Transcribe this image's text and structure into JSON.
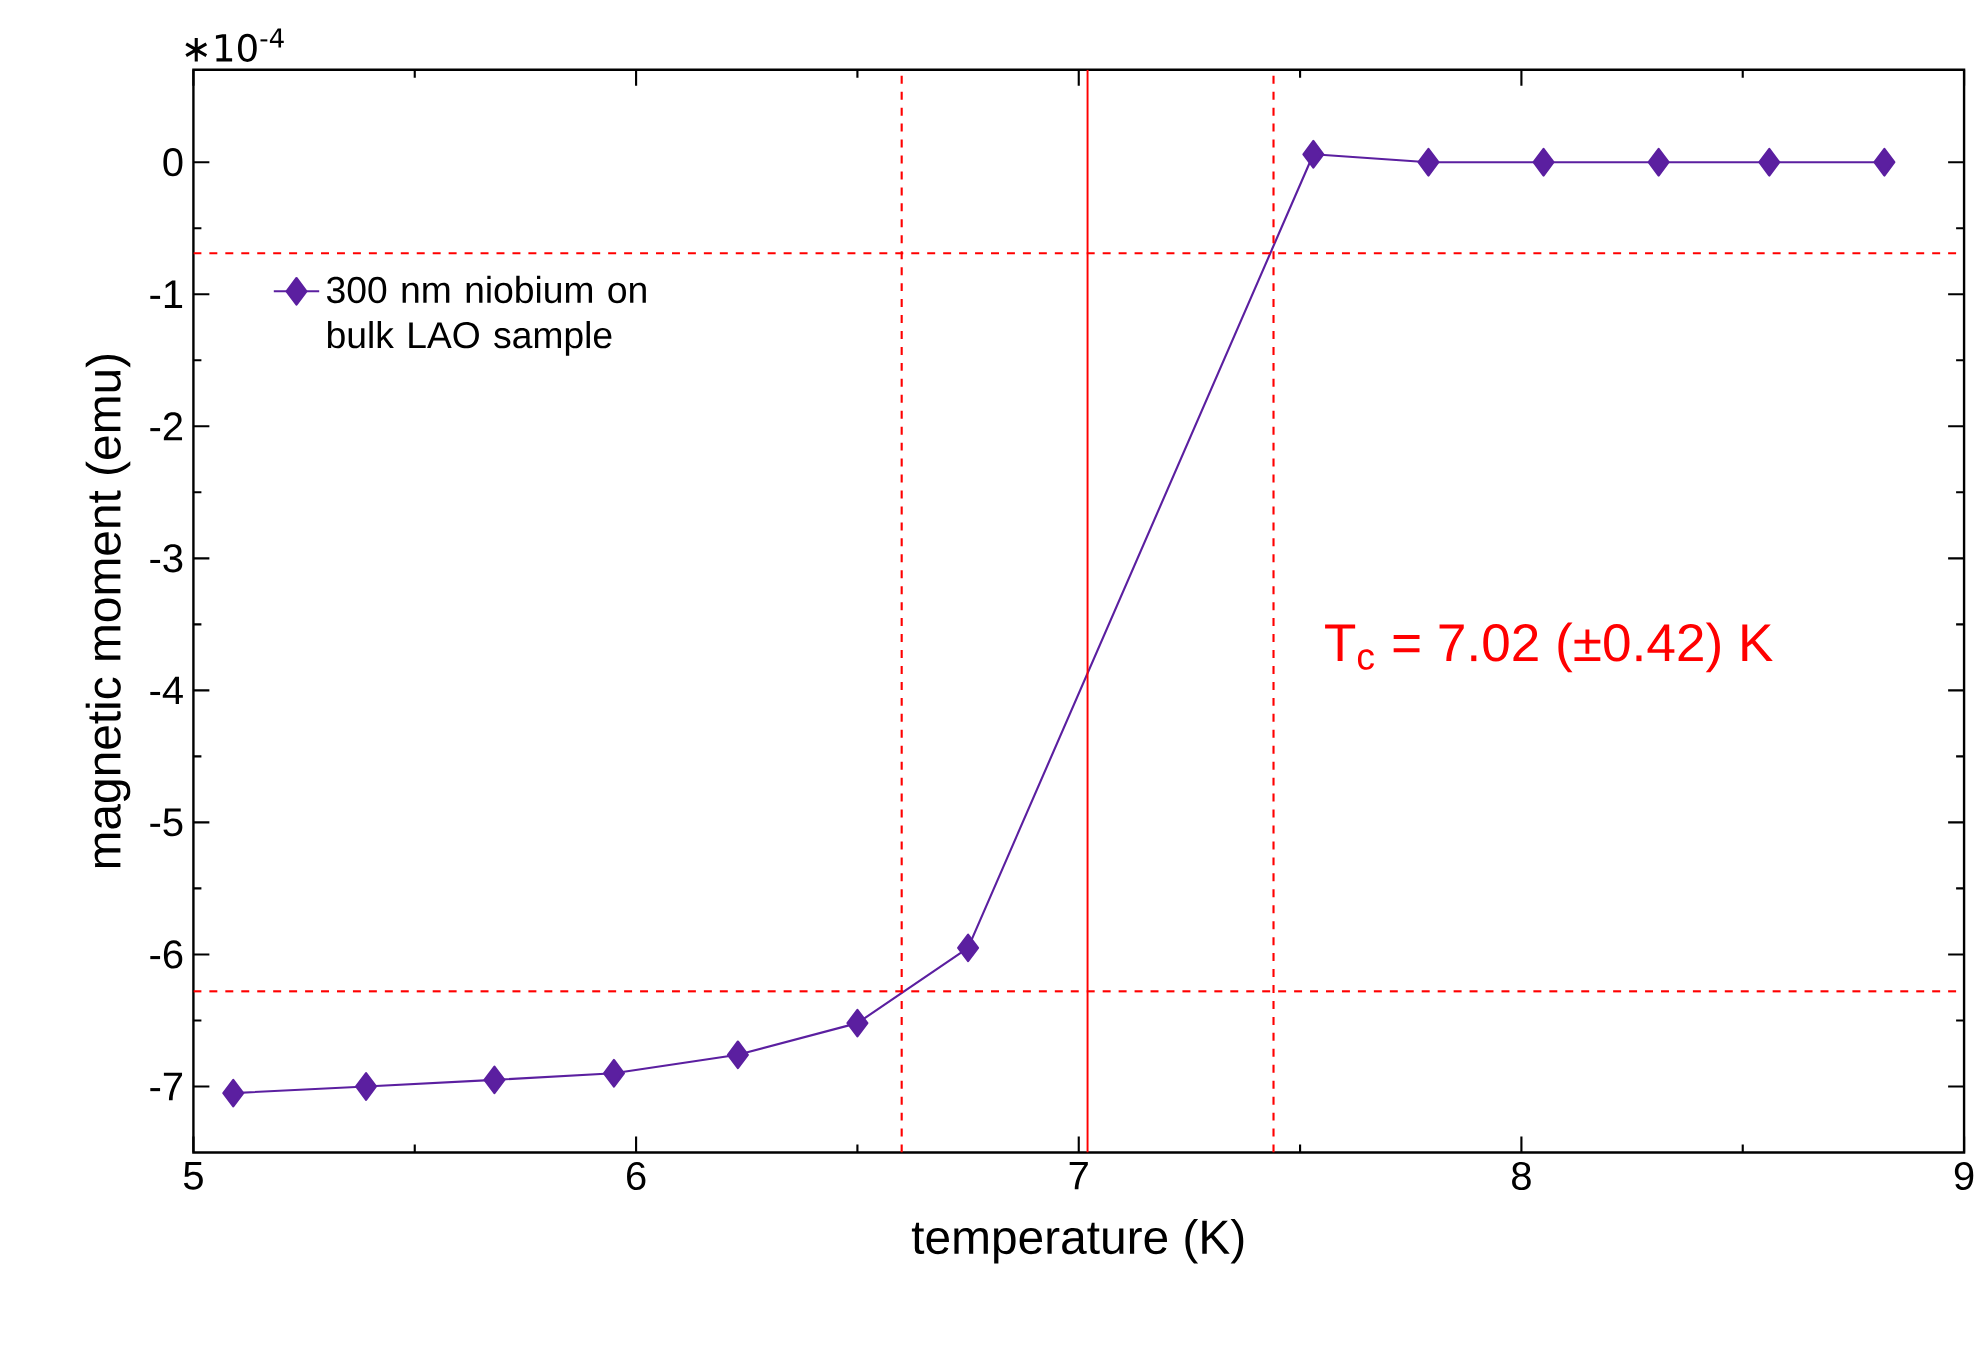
{
  "chart_data": {
    "type": "line",
    "xlabel": "temperature (K)",
    "ylabel": "magnetic moment (emu)",
    "xlim": [
      5,
      9
    ],
    "xticks": [
      5,
      6,
      7,
      8,
      9
    ],
    "ylim": [
      -7.5,
      0.7
    ],
    "yticks": [
      -7,
      -6,
      -5,
      -4,
      -3,
      -2,
      -1,
      0
    ],
    "series": [
      {
        "name": "300 nm niobium on bulk LAO sample",
        "color": "#5b1fa0",
        "x": [
          5.09,
          5.39,
          5.68,
          5.95,
          6.23,
          6.5,
          6.75,
          7.53,
          7.79,
          8.05,
          8.31,
          8.56,
          8.82
        ],
        "values": [
          -7.05,
          -7.0,
          -6.95,
          -6.9,
          -6.76,
          -6.52,
          -5.95,
          0.06,
          0.0,
          0.0,
          0.0,
          0.0,
          0.0
        ]
      }
    ],
    "ref_lines": [
      {
        "axis": "x",
        "value": 6.6,
        "color": "#ff0000",
        "line_style": "dashed"
      },
      {
        "axis": "x",
        "value": 7.02,
        "color": "#ff0000",
        "line_style": "solid"
      },
      {
        "axis": "x",
        "value": 7.44,
        "color": "#ff0000",
        "line_style": "dashed"
      },
      {
        "axis": "y",
        "value": -0.69,
        "color": "#ff0000",
        "line_style": "dashed"
      },
      {
        "axis": "y",
        "value": -6.28,
        "color": "#ff0000",
        "line_style": "dashed"
      }
    ],
    "annotations": [
      "∗10$^{-4}$",
      "T$_{c}$ = 7.02 (±0.42) K"
    ],
    "legend": "top left",
    "marker": "diamond",
    "line_style": "solid"
  }
}
